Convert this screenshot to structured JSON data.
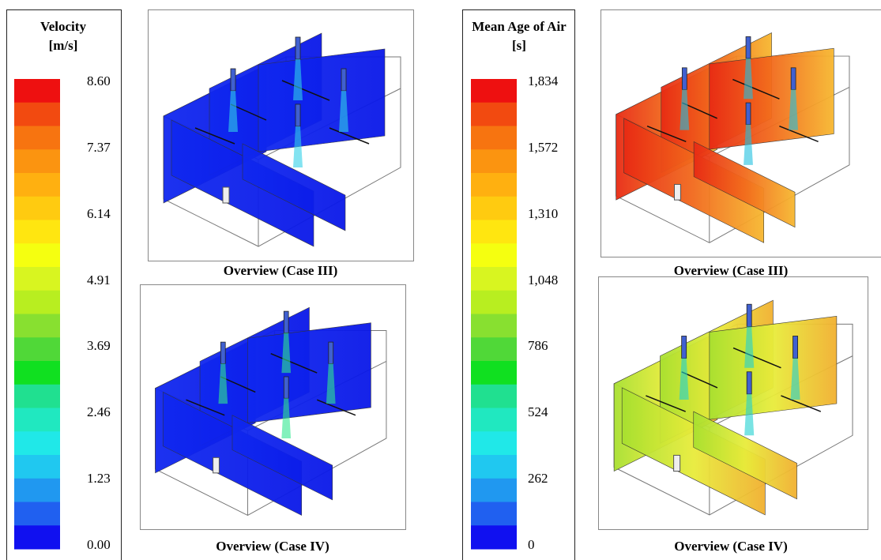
{
  "legends": [
    {
      "title": "Velocity [m/s]",
      "labels": [
        "8.60",
        "7.37",
        "6.14",
        "4.91",
        "3.69",
        "2.46",
        "1.23",
        "0.00"
      ]
    },
    {
      "title": "Mean Age of Air [s]",
      "labels": [
        "1,834",
        "1,572",
        "1,310",
        "1,048",
        "786",
        "524",
        "262",
        "0"
      ]
    }
  ],
  "panels": [
    {
      "caption": "Overview (Case III)"
    },
    {
      "caption": "Overview (Case IV)"
    },
    {
      "caption": "Overview (Case III)"
    },
    {
      "caption": "Overview (Case IV)"
    }
  ]
}
